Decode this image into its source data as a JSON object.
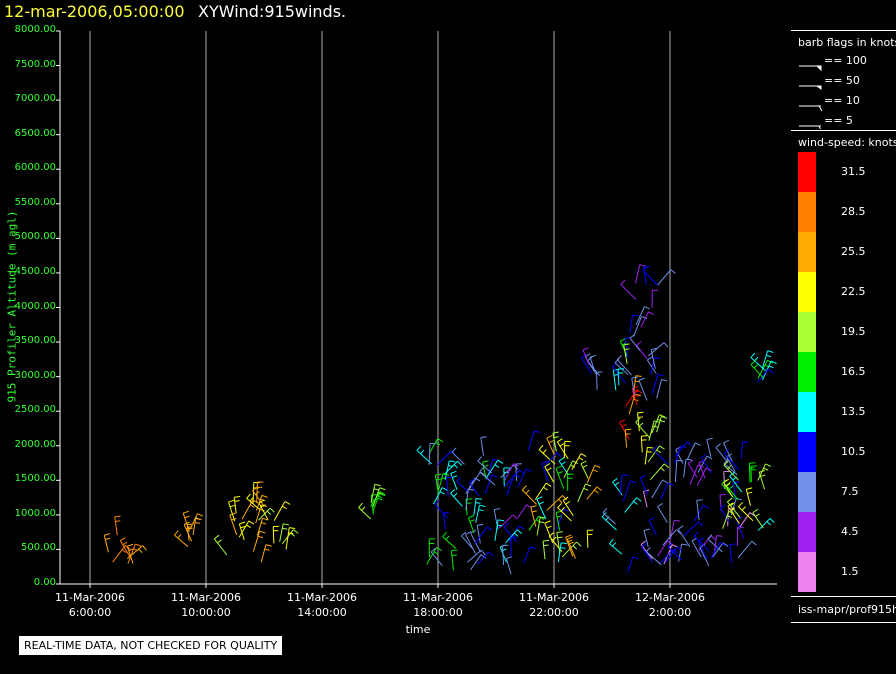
{
  "header": {
    "datetime": "12-mar-2006,05:00:00",
    "title": "XYWind:915winds."
  },
  "chart_data": {
    "type": "scatter",
    "mark": "wind-barbs",
    "ylabel": "915 Profiler Altitude (m agl)",
    "xlabel": "time",
    "ylim": [
      0,
      8000
    ],
    "y_ticks": [
      "8000.00",
      "7500.00",
      "7000.00",
      "6500.00",
      "6000.00",
      "5500.00",
      "5000.00",
      "4500.00",
      "4000.00",
      "3500.00",
      "3000.00",
      "2500.00",
      "2000.00",
      "1500.00",
      "1000.00",
      "500.00",
      "0.00"
    ],
    "x_ticks": [
      {
        "date": "11-Mar-2006",
        "time": "6:00:00",
        "hour": 6
      },
      {
        "date": "11-Mar-2006",
        "time": "10:00:00",
        "hour": 10
      },
      {
        "date": "11-Mar-2006",
        "time": "14:00:00",
        "hour": 14
      },
      {
        "date": "11-Mar-2006",
        "time": "18:00:00",
        "hour": 18
      },
      {
        "date": "11-Mar-2006",
        "time": "22:00:00",
        "hour": 22
      },
      {
        "date": "12-Mar-2006",
        "time": "2:00:00",
        "hour": 26
      }
    ],
    "xlim_hours": [
      5,
      30.8
    ],
    "grid": "vertical",
    "series": [
      {
        "hour_start": 6.5,
        "hour_end": 7.7,
        "alt_min": 200,
        "alt_max": 750,
        "speed_min": 24,
        "speed_max": 28
      },
      {
        "hour_start": 9.3,
        "hour_end": 9.6,
        "alt_min": 500,
        "alt_max": 800,
        "speed_min": 25,
        "speed_max": 27
      },
      {
        "hour_start": 10.5,
        "hour_end": 12.8,
        "alt_min": 300,
        "alt_max": 1200,
        "speed_min": 20,
        "speed_max": 28
      },
      {
        "hour_start": 15.6,
        "hour_end": 15.9,
        "alt_min": 900,
        "alt_max": 1200,
        "speed_min": 17,
        "speed_max": 19
      },
      {
        "hour_start": 17.6,
        "hour_end": 19.7,
        "alt_min": 100,
        "alt_max": 1900,
        "speed_min": 6,
        "speed_max": 18
      },
      {
        "hour_start": 19.8,
        "hour_end": 21.0,
        "alt_min": 100,
        "alt_max": 1700,
        "speed_min": 5,
        "speed_max": 14
      },
      {
        "hour_start": 21.1,
        "hour_end": 22.5,
        "alt_min": 200,
        "alt_max": 2000,
        "speed_min": 10,
        "speed_max": 26
      },
      {
        "hour_start": 22.6,
        "hour_end": 23.2,
        "alt_min": 200,
        "alt_max": 1700,
        "speed_min": 18,
        "speed_max": 26
      },
      {
        "hour_start": 23.2,
        "hour_end": 23.6,
        "alt_min": 2800,
        "alt_max": 3200,
        "speed_min": 5,
        "speed_max": 12
      },
      {
        "hour_start": 24.1,
        "hour_end": 24.6,
        "alt_min": 150,
        "alt_max": 1500,
        "speed_min": 8,
        "speed_max": 16
      },
      {
        "hour_start": 24.1,
        "hour_end": 24.6,
        "alt_min": 2700,
        "alt_max": 3900,
        "speed_min": 8,
        "speed_max": 20
      },
      {
        "hour_start": 24.4,
        "hour_end": 24.9,
        "alt_min": 1800,
        "alt_max": 2800,
        "speed_min": 25,
        "speed_max": 32
      },
      {
        "hour_start": 24.6,
        "hour_end": 25.6,
        "alt_min": 2500,
        "alt_max": 4400,
        "speed_min": 4,
        "speed_max": 12
      },
      {
        "hour_start": 24.9,
        "hour_end": 25.6,
        "alt_min": 1500,
        "alt_max": 2600,
        "speed_min": 16,
        "speed_max": 24
      },
      {
        "hour_start": 25.2,
        "hour_end": 28.6,
        "alt_min": 250,
        "alt_max": 1900,
        "speed_min": 2,
        "speed_max": 12
      },
      {
        "hour_start": 27.7,
        "hour_end": 29.3,
        "alt_min": 700,
        "alt_max": 1600,
        "speed_min": 12,
        "speed_max": 24
      },
      {
        "hour_start": 28.8,
        "hour_end": 29.3,
        "alt_min": 2800,
        "alt_max": 3300,
        "speed_min": 7,
        "speed_max": 17
      }
    ]
  },
  "legend": {
    "barb_title": "barb flags in knots",
    "barbs": [
      {
        "label": "== 100",
        "kind": "pennant"
      },
      {
        "label": "== 50",
        "kind": "pennant-small"
      },
      {
        "label": "== 10",
        "kind": "full"
      },
      {
        "label": "== 5",
        "kind": "half"
      }
    ],
    "speed_title": "wind-speed: knots",
    "colorbar": [
      {
        "label": "31.5",
        "color": "#ff0000"
      },
      {
        "label": "28.5",
        "color": "#ff7f00"
      },
      {
        "label": "25.5",
        "color": "#ffaa00"
      },
      {
        "label": "22.5",
        "color": "#ffff00"
      },
      {
        "label": "19.5",
        "color": "#aaff33"
      },
      {
        "label": "16.5",
        "color": "#00ee00"
      },
      {
        "label": "13.5",
        "color": "#00ffff"
      },
      {
        "label": "10.5",
        "color": "#0000ff"
      },
      {
        "label": "7.5",
        "color": "#6f8fe8"
      },
      {
        "label": "4.5",
        "color": "#a020f0"
      },
      {
        "label": "1.5",
        "color": "#ee82ee"
      }
    ],
    "source": "iss-mapr/prof915h"
  },
  "note": "REAL-TIME DATA, NOT CHECKED FOR QUALITY",
  "colors": {
    "axis_text": "#33ff33",
    "title_date": "#ffff33",
    "grid": "#aaaaaa"
  }
}
